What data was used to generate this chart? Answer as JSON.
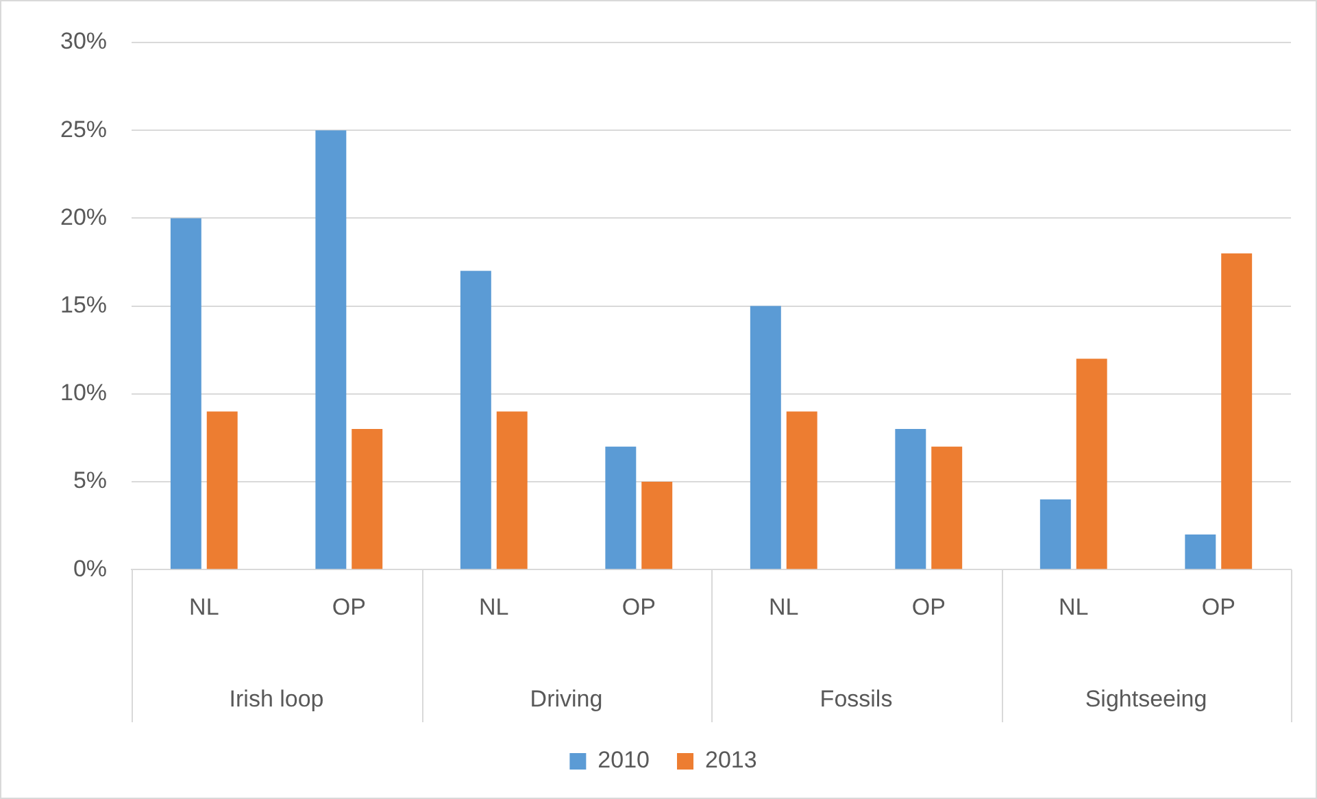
{
  "chart_data": {
    "type": "bar",
    "categories": [
      "NL",
      "OP",
      "NL",
      "OP",
      "NL",
      "OP",
      "NL",
      "OP"
    ],
    "series": [
      {
        "name": "2010",
        "color": "#5b9bd5",
        "values": [
          20,
          25,
          17,
          7,
          15,
          8,
          4,
          2
        ]
      },
      {
        "name": "2013",
        "color": "#ed7d31",
        "values": [
          9,
          8,
          9,
          5,
          9,
          7,
          12,
          18
        ]
      }
    ],
    "annotations": [
      "Irish loop",
      "Driving",
      "Fossils",
      "Sightseeing"
    ],
    "ylim": [
      0,
      30
    ],
    "yticks": [
      {
        "value": 0,
        "label": "0%"
      },
      {
        "value": 5,
        "label": "5%"
      },
      {
        "value": 10,
        "label": "10%"
      },
      {
        "value": 15,
        "label": "15%"
      },
      {
        "value": 20,
        "label": "20%"
      },
      {
        "value": 25,
        "label": "25%"
      },
      {
        "value": 30,
        "label": "30%"
      }
    ],
    "grid": "y",
    "legend": "bottom"
  }
}
